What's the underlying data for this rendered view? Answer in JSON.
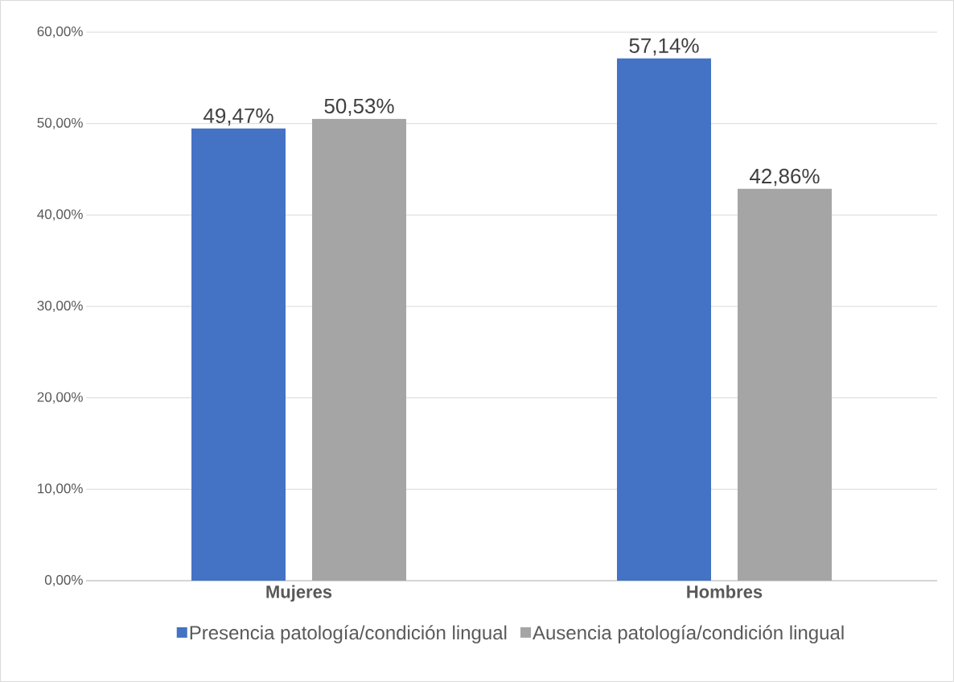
{
  "chart_data": {
    "type": "bar",
    "categories": [
      "Mujeres",
      "Hombres"
    ],
    "series": [
      {
        "name": "Presencia patología/condición lingual",
        "color": "#4472c4",
        "values": [
          49.47,
          57.14
        ],
        "value_labels": [
          "49,47%",
          "57,14%"
        ]
      },
      {
        "name": "Ausencia patología/condición lingual",
        "color": "#a5a5a5",
        "values": [
          50.53,
          42.86
        ],
        "value_labels": [
          "50,53%",
          "42,86%"
        ]
      }
    ],
    "ylim": [
      0,
      60
    ],
    "yticks": [
      {
        "value": 0,
        "label": "0,00%"
      },
      {
        "value": 10,
        "label": "10,00%"
      },
      {
        "value": 20,
        "label": "20,00%"
      },
      {
        "value": 30,
        "label": "30,00%"
      },
      {
        "value": 40,
        "label": "40,00%"
      },
      {
        "value": 50,
        "label": "50,00%"
      },
      {
        "value": 60,
        "label": "60,00%"
      }
    ],
    "grid": "y",
    "legend": "bottom"
  }
}
